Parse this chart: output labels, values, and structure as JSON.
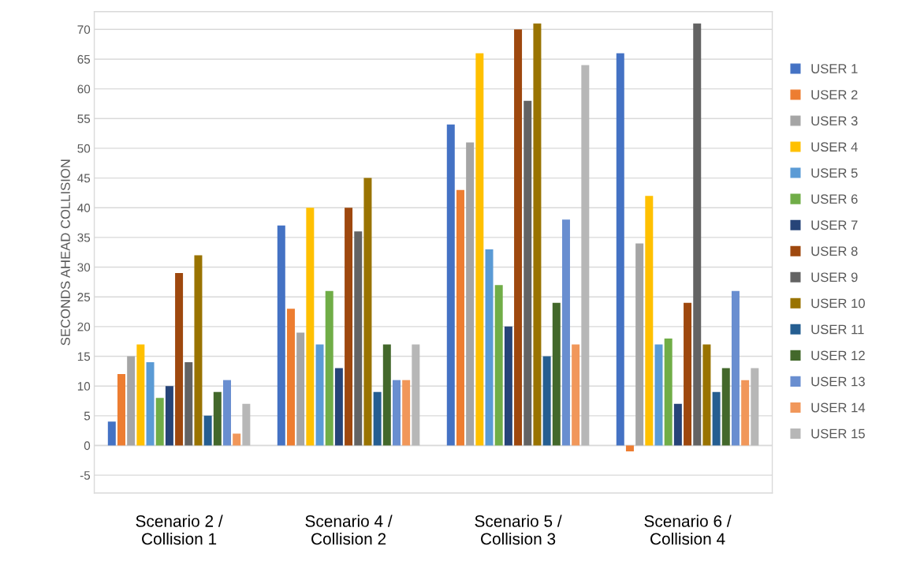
{
  "chart_data": {
    "type": "bar",
    "ylabel": "SECONDS AHEAD COLLISION",
    "categories": [
      "Scenario 2 /\nCollision 1",
      "Scenario 4 /\nCollision 2",
      "Scenario 5 /\nCollision 3",
      "Scenario 6 /\nCollision 4"
    ],
    "series": [
      {
        "name": "USER 1",
        "color": "#4472c4",
        "values": [
          4,
          37,
          54,
          66
        ]
      },
      {
        "name": "USER 2",
        "color": "#ed7d31",
        "values": [
          12,
          23,
          43,
          -1
        ]
      },
      {
        "name": "USER 3",
        "color": "#a5a5a5",
        "values": [
          15,
          19,
          51,
          34
        ]
      },
      {
        "name": "USER 4",
        "color": "#ffc000",
        "values": [
          17,
          40,
          66,
          42
        ]
      },
      {
        "name": "USER 5",
        "color": "#5b9bd5",
        "values": [
          14,
          17,
          33,
          17
        ]
      },
      {
        "name": "USER 6",
        "color": "#70ad47",
        "values": [
          8,
          26,
          27,
          18
        ]
      },
      {
        "name": "USER 7",
        "color": "#264478",
        "values": [
          10,
          13,
          20,
          7
        ]
      },
      {
        "name": "USER 8",
        "color": "#9e480e",
        "values": [
          29,
          40,
          70,
          24
        ]
      },
      {
        "name": "USER 9",
        "color": "#636363",
        "values": [
          14,
          36,
          58,
          71
        ]
      },
      {
        "name": "USER 10",
        "color": "#997300",
        "values": [
          32,
          45,
          71,
          17
        ]
      },
      {
        "name": "USER 11",
        "color": "#255e91",
        "values": [
          5,
          9,
          15,
          9
        ]
      },
      {
        "name": "USER 12",
        "color": "#43682b",
        "values": [
          9,
          17,
          24,
          13
        ]
      },
      {
        "name": "USER 13",
        "color": "#698ed0",
        "values": [
          11,
          11,
          38,
          26
        ]
      },
      {
        "name": "USER 14",
        "color": "#f1975a",
        "values": [
          2,
          11,
          17,
          11
        ]
      },
      {
        "name": "USER 15",
        "color": "#b7b7b7",
        "values": [
          7,
          17,
          64,
          13
        ]
      }
    ],
    "ylim": [
      -8,
      73
    ],
    "yticks": [
      -5,
      0,
      5,
      10,
      15,
      20,
      25,
      30,
      35,
      40,
      45,
      50,
      55,
      60,
      65,
      70
    ],
    "grid": "y",
    "legend": "right"
  }
}
